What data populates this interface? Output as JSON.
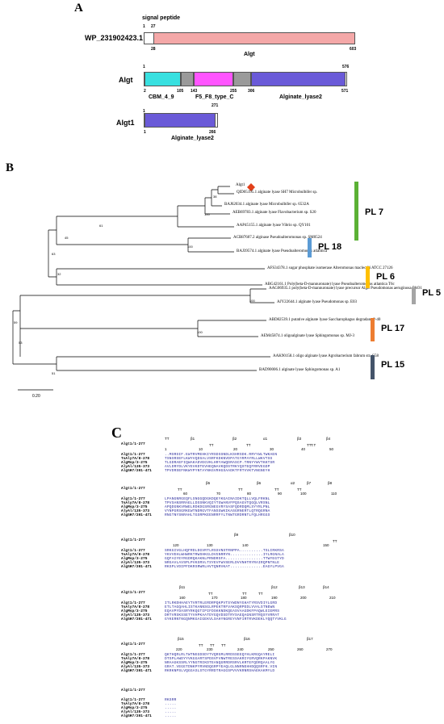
{
  "panelA": {
    "letter": "A",
    "wp": {
      "accession": "WP_231902423.1",
      "signal_label": "signal peptide",
      "start": "1",
      "signal_end": "27",
      "domain_start": "28",
      "end": "603",
      "domain_name": "Algt",
      "domain_color": "#f4a8a8"
    },
    "algt": {
      "name": "Algt",
      "start": "1",
      "end": "576",
      "positions": [
        "2",
        "105",
        "143",
        "255",
        "306",
        "571"
      ],
      "domains": [
        {
          "name": "CBM_4_9",
          "color": "#38e0e0"
        },
        {
          "name": "F5_F8_type_C",
          "color": "#ff55ff"
        },
        {
          "name": "Alginate_lyase2",
          "color": "#6a5ad8"
        }
      ],
      "linker_color": "#9a9a9a"
    },
    "algt1": {
      "name": "Algt1",
      "start": "1",
      "end": "271",
      "domain_end": "266",
      "domain_name": "Alginate_lyase2",
      "domain_color": "#6a5ad8"
    }
  },
  "panelB": {
    "letter": "B",
    "scale_label": "0.20",
    "leaves": [
      "Algt1",
      "QID05195.1 alginate lyase SH7 Microbulbifer sp.",
      "BAJ62034.1 alginate lyase Microbulbifer sp. 6532A",
      "AEB69783.1 alginate lyase Flavobacterium sp. S20",
      "AAP45155.1 alginate lyase Vibrio sp. QY101",
      "ACB87607.2 alginase Pseudoalteromonas sp. SM0524",
      "BAJ39574.1 alginate lyase Pseudoalteromonas atlantica",
      "AFS34378.1 sugar phosphate isomerase Alteromonas macleodii ATCC 27126",
      "ABG42161.1 Poly(beta-D-mannuronate) lyase Pseudoalteromonas atlantica T6c",
      "AAG06935.1 poly(beta-D-mannuronate) lyase precursor AlgL Pseudomonas aeruginosa PAO1",
      "AJY22644.1 alginate lyase Pseudomonas sp. E03",
      "ABD82539.1 putative alginate lyase Saccharophagus degradans 2-40",
      "AEM45874.1 oligoalginate lyase Sphingomonas sp. MJ-3",
      "AAK90158.1 oligo alginate lyase Agrobacterium fabrum str. C58",
      "BAD90006.1 alginate lyase Sphingomonas sp. A1"
    ],
    "bootstrap": [
      "38",
      "100",
      "61",
      "45",
      "63",
      "100",
      "32",
      "100",
      "100",
      "59",
      "53",
      "51"
    ],
    "families": [
      {
        "label": "PL 7",
        "color": "#5bb135"
      },
      {
        "label": "PL 18",
        "color": "#5b9bd5"
      },
      {
        "label": "PL 6",
        "color": "#ffc000"
      },
      {
        "label": "PL 5",
        "color": "#a5a5a5"
      },
      {
        "label": "PL 17",
        "color": "#ed7d31"
      },
      {
        "label": "PL 15",
        "color": "#44546a"
      }
    ],
    "marker_color": "#e2401a"
  },
  "panelC": {
    "letter": "C",
    "header_name": "Algt1/1-277",
    "names": [
      "Algt1/1-277",
      "TsAly7A/8-278",
      "AlgMsp/3-275",
      "AlyAl/135-373",
      "AlgSH7/201-471"
    ],
    "blocks": [
      {
        "ss": [
          "TT",
          "β1",
          "TT",
          "β2",
          "TT",
          "α1",
          "β3",
          "TT",
          "β4"
        ],
        "ruler": [
          "1",
          "10",
          "20",
          "30",
          "40",
          "T.T",
          "50"
        ],
        "rows": [
          "..MSRSIF.EWTRVMEHKIYRSDSSNDLKSHRSDK.RRYYWLTWKAEN",
          "TSNSRSEFLKWYVQDSALVSRFKDKNVDPATGYRPAYRLLWKVTSS",
          "TLGDRAEFIQWAKADVEGVKLHRYAWQDRASCP.TRNYYWVTKKTSR",
          "AVLDRYDLVKYEVKDTEVHEQNAVKQDSTRKYQSTEQFRRVEGDP",
          "TPVDRSEFNKWYPYNTAYNKGVRHGSAADKTFRTVVKTVNGNEYH"
        ]
      },
      {
        "ss": [
          "TT",
          "β5",
          "TT",
          "β6",
          "TT",
          "α2",
          "TT",
          "β7",
          "β8"
        ],
        "ruler": [
          "60",
          "70",
          "80",
          "90",
          "100",
          "110"
        ],
        "rows": [
          "LPANGNRGEQFLSNGGQDGKDQEYKGAINAIDKTQLLVQLFRKNL",
          "TPVSANSRRAELLDSSNKVQIYTGWANVFPQSAGVTQGQLVRSNL",
          "APQDGNKVRWELRDKDGSRGNEGVRYSASFQDRDQMLSYYRLPNL",
          "VYNPGRSGRKEWTNDRGVTFANSGWKIKASGRNERTLQTRQGRNA",
          "RNGTNYSNRAHLTGSRPKEENRRFYLTNWTGRDRNTLFQLHRGGS"
        ]
      },
      {
        "ss": [
          "β9",
          "β10",
          "TT"
        ],
        "ruler": [
          "120",
          "130",
          "140",
          "150"
        ],
        "rows": [
          "SRKGIVGLHQFRDLDGVRTLRSSVNSTRNPPA..........TSLIRKRSA",
          "YKVVEHLWHWRKTRWSHKGLDVGNRRYN..............IYLRGNALA",
          "GQFAIYEYRGDRQKAKNLPRNDRSFA................TTWYEGTYD",
          "NRGAVLAVSPLPVKSRVLTSYEVFWVSERLDVVNHTRYRAIRQPNTNLE",
          "RKSPLVDIPFDKRSRWRLHVTQNRVKAT..............EAGYLPVGA"
        ]
      },
      {
        "ss": [
          "β11",
          "TT",
          "TT",
          "TT",
          "β12",
          "β13",
          "β14"
        ],
        "ruler": [
          "160",
          "170",
          "180",
          "190",
          "200",
          "210"
        ],
        "rows": [
          "ITLRKDHHAEYTVRTRLERDRPQKPVTSYWDNYGHATYRSVDIYLGRD",
          "ETLTAGQAHLISTKANNSGLRPEKTRFVAKSQRPEDLVVALSTNEWN",
          "EQAVPYDASRYRKQGTIPIFDSKKNDKQEASVAAGDKFPAQWLEIEMRS",
          "DRTVRSKSSETYVHPKAATDYGQVDSDTRYSAEQAGNSRTRQSYVRRAT",
          "GYKERNTNGQNMKGAIGEKVLSAHYNGREYVNFIRTRVKDEKLYQQTYVKLG"
        ]
      },
      {
        "ss": [
          "β15",
          "TT",
          "TT",
          "TT",
          "β16",
          "β17"
        ],
        "ruler": [
          "220",
          "230",
          "240",
          "250",
          "260",
          "270"
        ],
        "rows": [
          "QKTHQRLRLTWTNEGDSDYTVQRGMLRRDSSEEQYHLKRGQAYRELI",
          "DTSPLAWDYYVKGGARTSPDSVFVNWTRESSAKRIYGRVQRKPAKNVK",
          "NRAAGKSSRLYYNGTRIKDTEANQGRRDRSRVLKRTEFQDRQAALYG",
          "GRAT.VEGETDNKPYRVNDQGRPYEAQLGLNNRNEHHDQQSRFK.VIN",
          "RKRKNPSLVQGGASLSTGYRRDTRAGGSPVVVKRNRSHAEKAKMYLD"
        ]
      },
      {
        "ss": [],
        "ruler": [],
        "rows": [
          "RKSRR",
          ".....",
          ".....",
          ".....",
          "....."
        ]
      }
    ]
  }
}
